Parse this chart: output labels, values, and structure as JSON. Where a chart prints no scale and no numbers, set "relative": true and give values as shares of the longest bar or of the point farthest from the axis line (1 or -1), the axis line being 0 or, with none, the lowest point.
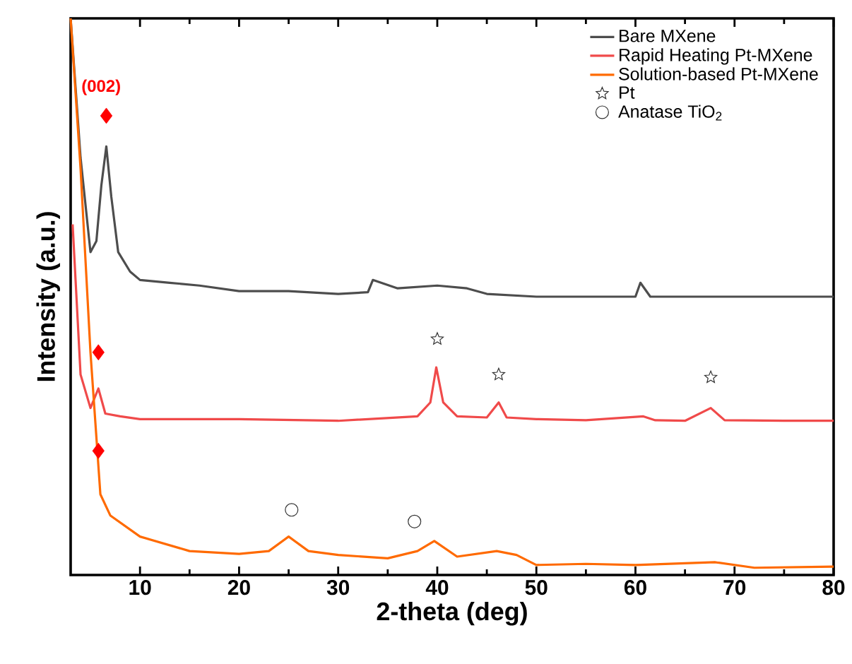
{
  "chart_data": {
    "type": "line",
    "relative": true,
    "xlabel": "2-theta (deg)",
    "ylabel": "Intensity (a.u.)",
    "xlim": [
      3,
      80
    ],
    "xticks": [
      10,
      20,
      30,
      40,
      50,
      60,
      70,
      80
    ],
    "tick_labels": "x",
    "legend": "top right",
    "grid": false,
    "annotations": [
      "(002)"
    ],
    "series": [
      {
        "name": "Bare MXene",
        "color": "#4d4d4d",
        "x": [
          3,
          4,
          5,
          5.6,
          6.1,
          6.6,
          7.1,
          7.8,
          9,
          10,
          13,
          16,
          20,
          25,
          30,
          33,
          33.5,
          36,
          40,
          43,
          45,
          50,
          55,
          60,
          60.5,
          61.5,
          65,
          70,
          75,
          80
        ],
        "values": [
          1.0,
          0.75,
          0.58,
          0.6,
          0.7,
          0.77,
          0.68,
          0.58,
          0.545,
          0.53,
          0.525,
          0.52,
          0.51,
          0.51,
          0.505,
          0.508,
          0.53,
          0.515,
          0.52,
          0.515,
          0.505,
          0.5,
          0.5,
          0.5,
          0.525,
          0.5,
          0.5,
          0.5,
          0.5,
          0.5
        ]
      },
      {
        "name": "Rapid Heating Pt-MXene",
        "color": "#f04a4a",
        "x": [
          3.2,
          4,
          5,
          5.8,
          6.5,
          8,
          10,
          20,
          30,
          38,
          39.3,
          39.9,
          40.6,
          42,
          45,
          46.2,
          47,
          50,
          55,
          60.8,
          62,
          65,
          67.6,
          69,
          75,
          80
        ],
        "values": [
          0.63,
          0.36,
          0.3,
          0.335,
          0.29,
          0.285,
          0.28,
          0.28,
          0.277,
          0.285,
          0.31,
          0.373,
          0.31,
          0.285,
          0.283,
          0.31,
          0.283,
          0.28,
          0.278,
          0.285,
          0.278,
          0.277,
          0.3,
          0.278,
          0.277,
          0.277
        ]
      },
      {
        "name": "Solution-based Pt-MXene",
        "color": "#ff6a00",
        "x": [
          3,
          4,
          5,
          6,
          7,
          10,
          15,
          20,
          23,
          25,
          27,
          30,
          35,
          38,
          39.7,
          42,
          46,
          48,
          50,
          55,
          60,
          68,
          72,
          80
        ],
        "values": [
          1.0,
          0.73,
          0.4,
          0.145,
          0.107,
          0.069,
          0.043,
          0.038,
          0.043,
          0.069,
          0.043,
          0.036,
          0.03,
          0.043,
          0.061,
          0.033,
          0.043,
          0.036,
          0.018,
          0.02,
          0.018,
          0.023,
          0.013,
          0.015
        ]
      },
      {
        "type": "scatter",
        "name": "Pt",
        "color": "#333333",
        "marker": "star",
        "x": [
          40,
          46.2,
          67.6
        ],
        "values": [
          0.424,
          0.36,
          0.355
        ]
      },
      {
        "type": "scatter",
        "name": "Anatase TiO$_{2}$",
        "color": "#333333",
        "marker": "circle",
        "x": [
          25.3,
          37.7
        ],
        "values": [
          0.117,
          0.096
        ]
      },
      {
        "type": "scatter",
        "color": "#ff0000",
        "marker": "diamond",
        "x": [
          6.6,
          5.8,
          5.8
        ],
        "values": [
          0.825,
          0.4,
          0.223
        ]
      }
    ]
  }
}
